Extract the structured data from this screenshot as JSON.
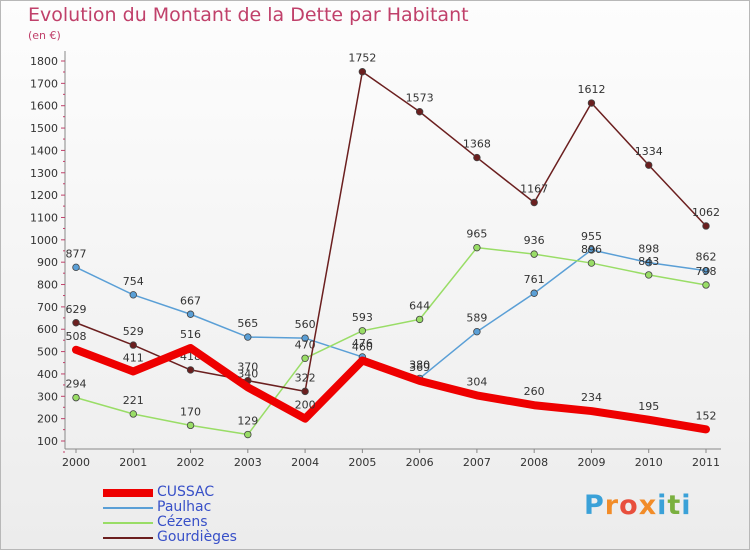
{
  "title": "Evolution du Montant de la Dette par Habitant",
  "subtitle": "(en €)",
  "logo": {
    "text": "Proxiti",
    "colors": [
      "#3aa1d8",
      "#f28c28",
      "#e84f3d",
      "#f28c28",
      "#3aa1d8",
      "#7ab03f",
      "#3aa1d8"
    ]
  },
  "chart_data": {
    "type": "line",
    "x": [
      "2000",
      "2001",
      "2002",
      "2003",
      "2004",
      "2005",
      "2006",
      "2007",
      "2008",
      "2009",
      "2010",
      "2011"
    ],
    "ylim": [
      100,
      1800
    ],
    "yticks": [
      100,
      200,
      300,
      400,
      500,
      600,
      700,
      800,
      900,
      1000,
      1100,
      1200,
      1300,
      1400,
      1500,
      1600,
      1700,
      1800
    ],
    "grid": false,
    "legend_position": "bottom-left",
    "series": [
      {
        "name": "CUSSAC",
        "color": "#ee0000",
        "width": 8,
        "marker": false,
        "values": [
          508,
          411,
          516,
          340,
          200,
          460,
          369,
          304,
          260,
          234,
          195,
          152
        ]
      },
      {
        "name": "Paulhac",
        "color": "#5a9fd6",
        "width": 1.5,
        "marker": true,
        "values": [
          877,
          754,
          667,
          565,
          560,
          476,
          380,
          589,
          761,
          955,
          898,
          862
        ]
      },
      {
        "name": "Cézens",
        "color": "#99dd66",
        "width": 1.5,
        "marker": true,
        "values": [
          294,
          221,
          170,
          129,
          470,
          593,
          644,
          965,
          936,
          896,
          843,
          798
        ]
      },
      {
        "name": "Gourdièges",
        "color": "#6b1f1f",
        "width": 1.5,
        "marker": true,
        "values": [
          629,
          529,
          418,
          370,
          322,
          1752,
          1573,
          1368,
          1167,
          1612,
          1334,
          1062
        ]
      }
    ]
  }
}
